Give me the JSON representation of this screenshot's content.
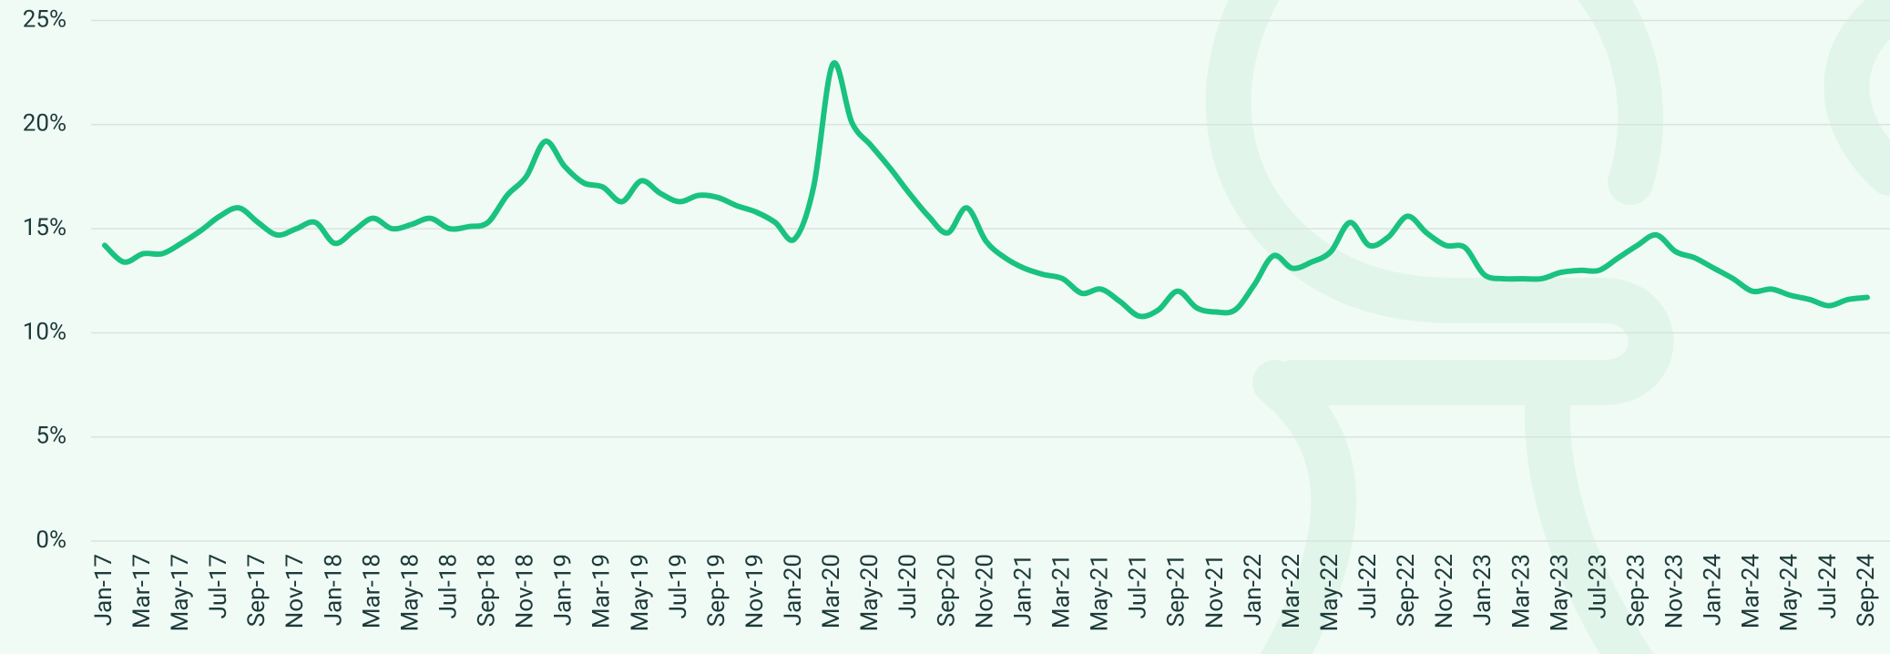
{
  "chart_data": {
    "type": "line",
    "categories": [
      "Jan-17",
      null,
      "Mar-17",
      null,
      "May-17",
      null,
      "Jul-17",
      null,
      "Sep-17",
      null,
      "Nov-17",
      null,
      "Jan-18",
      null,
      "Mar-18",
      null,
      "May-18",
      null,
      "Jul-18",
      null,
      "Sep-18",
      null,
      "Nov-18",
      null,
      "Jan-19",
      null,
      "Mar-19",
      null,
      "May-19",
      null,
      "Jul-19",
      null,
      "Sep-19",
      null,
      "Nov-19",
      null,
      "Jan-20",
      null,
      "Mar-20",
      null,
      "May-20",
      null,
      "Jul-20",
      null,
      "Sep-20",
      null,
      "Nov-20",
      null,
      "Jan-21",
      null,
      "Mar-21",
      null,
      "May-21",
      null,
      "Jul-21",
      null,
      "Sep-21",
      null,
      "Nov-21",
      null,
      "Jan-22",
      null,
      "Mar-22",
      null,
      "May-22",
      null,
      "Jul-22",
      null,
      "Sep-22",
      null,
      "Nov-22",
      null,
      "Jan-23",
      null,
      "Mar-23",
      null,
      "May-23",
      null,
      "Jul-23",
      null,
      "Sep-23",
      null,
      "Nov-23",
      null,
      "Jan-24",
      null,
      "Mar-24",
      null,
      "May-24",
      null,
      "Jul-24",
      null,
      "Sep-24"
    ],
    "values": [
      14.2,
      13.4,
      13.8,
      13.8,
      14.3,
      14.9,
      15.6,
      16.0,
      15.3,
      14.7,
      15.0,
      15.3,
      14.3,
      14.9,
      15.5,
      15.0,
      15.2,
      15.5,
      15.0,
      15.1,
      15.3,
      16.6,
      17.5,
      19.2,
      18.0,
      17.2,
      17.0,
      16.3,
      17.3,
      16.7,
      16.3,
      16.6,
      16.5,
      16.1,
      15.8,
      15.3,
      14.5,
      17.0,
      22.9,
      20.1,
      19.0,
      17.9,
      16.7,
      15.6,
      14.8,
      16.0,
      14.4,
      13.6,
      13.1,
      12.8,
      12.6,
      11.9,
      12.1,
      11.5,
      10.8,
      11.1,
      12.0,
      11.2,
      11.0,
      11.1,
      12.3,
      13.7,
      13.1,
      13.4,
      13.9,
      15.3,
      14.2,
      14.6,
      15.6,
      14.8,
      14.2,
      14.1,
      12.8,
      12.6,
      12.6,
      12.6,
      12.9,
      13.0,
      13.0,
      13.6,
      14.2,
      14.7,
      13.9,
      13.6,
      13.1,
      12.6,
      12.0,
      12.1,
      11.8,
      11.6,
      11.3,
      11.6,
      11.7
    ],
    "color": "#19c27f",
    "ylim": [
      0,
      25
    ],
    "yticks": [
      {
        "value": 0,
        "label": "0%"
      },
      {
        "value": 5,
        "label": "5%"
      },
      {
        "value": 10,
        "label": "10%"
      },
      {
        "value": 15,
        "label": "15%"
      },
      {
        "value": 20,
        "label": "20%"
      },
      {
        "value": 25,
        "label": "25%"
      }
    ],
    "grid": true
  }
}
